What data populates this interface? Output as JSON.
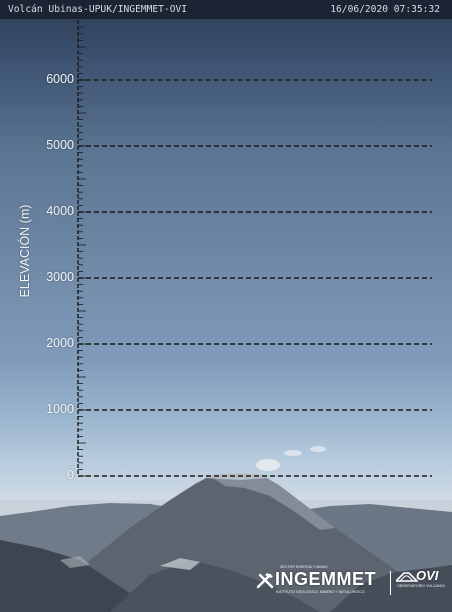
{
  "camera": {
    "title": "Volcán Ubinas-UPUK/INGEMMET-OVI",
    "datetime": "16/06/2020 07:35:32"
  },
  "scale": {
    "axis_label": "ELEVACIÓN (m)",
    "ticks": [
      {
        "label": "6000",
        "value": 6000
      },
      {
        "label": "5000",
        "value": 5000
      },
      {
        "label": "4000",
        "value": 4000
      },
      {
        "label": "3000",
        "value": 3000
      },
      {
        "label": "2000",
        "value": 2000
      },
      {
        "label": "1000",
        "value": 1000
      },
      {
        "label": "0",
        "value": 0
      }
    ],
    "line_style": "dashed",
    "line_color": "#1a1a1a"
  },
  "logos": {
    "ingemmet": "INGEMMET",
    "ingemmet_tagline": "SECTOR ENERGÍA Y MINAS",
    "ingemmet_subtitle": "INSTITUTO GEOLÓGICO, MINERO Y METALÚRGICO",
    "ovi": "OVI",
    "ovi_subtitle": "OBSERVATORIO VULCANOLÓGICO"
  },
  "colors": {
    "header_bg": "#19222f",
    "sky_top": "#2d3d55",
    "sky_horizon": "#d4dde6",
    "label_text": "#f2f4f7"
  }
}
